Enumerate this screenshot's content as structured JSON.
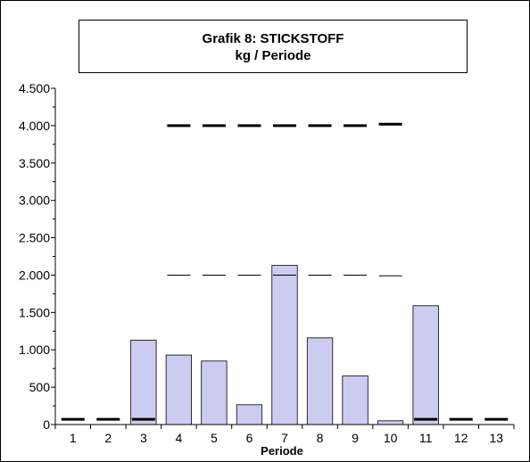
{
  "chart_data": {
    "type": "bar",
    "title": "Grafik 8: STICKSTOFF",
    "subtitle": "kg / Periode",
    "xlabel": "Periode",
    "ylabel": "",
    "ylim": [
      0,
      4500
    ],
    "y_ticks": [
      0,
      500,
      1000,
      1500,
      2000,
      2500,
      3000,
      3500,
      4000,
      4500
    ],
    "y_tick_labels": [
      "0",
      "500",
      "1.000",
      "1.500",
      "2.000",
      "2.500",
      "3.000",
      "3.500",
      "4.000",
      "4.500"
    ],
    "categories": [
      "1",
      "2",
      "3",
      "4",
      "5",
      "6",
      "7",
      "8",
      "9",
      "10",
      "11",
      "12",
      "13"
    ],
    "grid": false,
    "legend": "none",
    "series": [
      {
        "kind": "bar",
        "values": [
          0,
          0,
          1130,
          930,
          850,
          265,
          2130,
          1160,
          650,
          50,
          1590,
          0,
          0
        ],
        "color": "#ccccf0"
      },
      {
        "kind": "marker-thick",
        "values": [
          70,
          70,
          70,
          4000,
          4000,
          4000,
          4000,
          4000,
          4000,
          4020,
          70,
          70,
          70
        ],
        "color": "#000000"
      },
      {
        "kind": "marker-thin",
        "values": [
          null,
          null,
          null,
          2000,
          2000,
          2000,
          2000,
          2000,
          2000,
          1990,
          null,
          null,
          null
        ],
        "color": "#000000"
      }
    ]
  }
}
